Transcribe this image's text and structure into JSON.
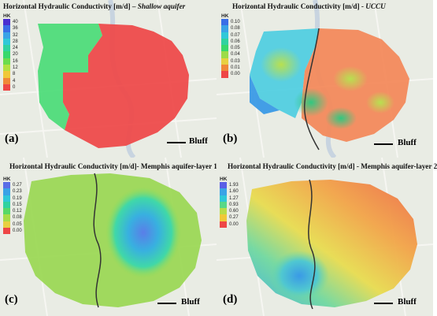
{
  "panels": {
    "a": {
      "title_main": "Horizontal Hydraulic Conductivity [m/d]",
      "title_sep": " – ",
      "title_emph": "Shallow aquifer",
      "label": "(a)",
      "bluff": "Bluff",
      "legend_title": "HK",
      "legend": [
        {
          "v": "40",
          "c": "#4a2fd0"
        },
        {
          "v": "36",
          "c": "#3a6ee6"
        },
        {
          "v": "32",
          "c": "#3aa3e6"
        },
        {
          "v": "28",
          "c": "#30c8d8"
        },
        {
          "v": "24",
          "c": "#30d2a0"
        },
        {
          "v": "20",
          "c": "#38d86c"
        },
        {
          "v": "16",
          "c": "#6cdc4c"
        },
        {
          "v": "12",
          "c": "#b4e040"
        },
        {
          "v": "8",
          "c": "#f0c838"
        },
        {
          "v": "4",
          "c": "#f08838"
        },
        {
          "v": "0",
          "c": "#ee4646"
        }
      ]
    },
    "b": {
      "title_main": "Horizontal Hydraulic Conductivity [m/d]",
      "title_sep": " - ",
      "title_emph": "UCCU",
      "label": "(b)",
      "bluff": "Bluff",
      "legend_title": "HK",
      "legend": [
        {
          "v": "0.10",
          "c": "#3a6ee6"
        },
        {
          "v": "0.08",
          "c": "#3aa3e6"
        },
        {
          "v": "0.07",
          "c": "#30c8d8"
        },
        {
          "v": "0.06",
          "c": "#30d2a0"
        },
        {
          "v": "0.05",
          "c": "#38d86c"
        },
        {
          "v": "0.04",
          "c": "#9cdc48"
        },
        {
          "v": "0.03",
          "c": "#e8d040"
        },
        {
          "v": "0.01",
          "c": "#f08838"
        },
        {
          "v": "0.00",
          "c": "#ee4646"
        }
      ]
    },
    "c": {
      "title_main": "Horizontal Hydraulic Conductivity [m/d]- Memphis aquifer-layer 1",
      "label": "(c)",
      "bluff": "Bluff",
      "legend_title": "HK",
      "legend": [
        {
          "v": "0.27",
          "c": "#5a6ee6"
        },
        {
          "v": "0.23",
          "c": "#3aa3e6"
        },
        {
          "v": "0.19",
          "c": "#30c8d8"
        },
        {
          "v": "0.15",
          "c": "#30d2a0"
        },
        {
          "v": "0.12",
          "c": "#58d868"
        },
        {
          "v": "0.08",
          "c": "#a8dc48"
        },
        {
          "v": "0.05",
          "c": "#e8d040"
        },
        {
          "v": "0.00",
          "c": "#ee4646"
        }
      ]
    },
    "d": {
      "title_main": "Horizontal Hydraulic Conductivity [m/d] - Memphis aquifer-layer 2",
      "label": "(d)",
      "bluff": "Bluff",
      "legend_title": "HK",
      "legend": [
        {
          "v": "1.93",
          "c": "#5a5ee6"
        },
        {
          "v": "1.60",
          "c": "#3aa3e6"
        },
        {
          "v": "1.27",
          "c": "#30c8d8"
        },
        {
          "v": "0.93",
          "c": "#58d888"
        },
        {
          "v": "0.60",
          "c": "#b8dc48"
        },
        {
          "v": "0.27",
          "c": "#f0c838"
        },
        {
          "v": "0.00",
          "c": "#ee4646"
        }
      ]
    }
  }
}
